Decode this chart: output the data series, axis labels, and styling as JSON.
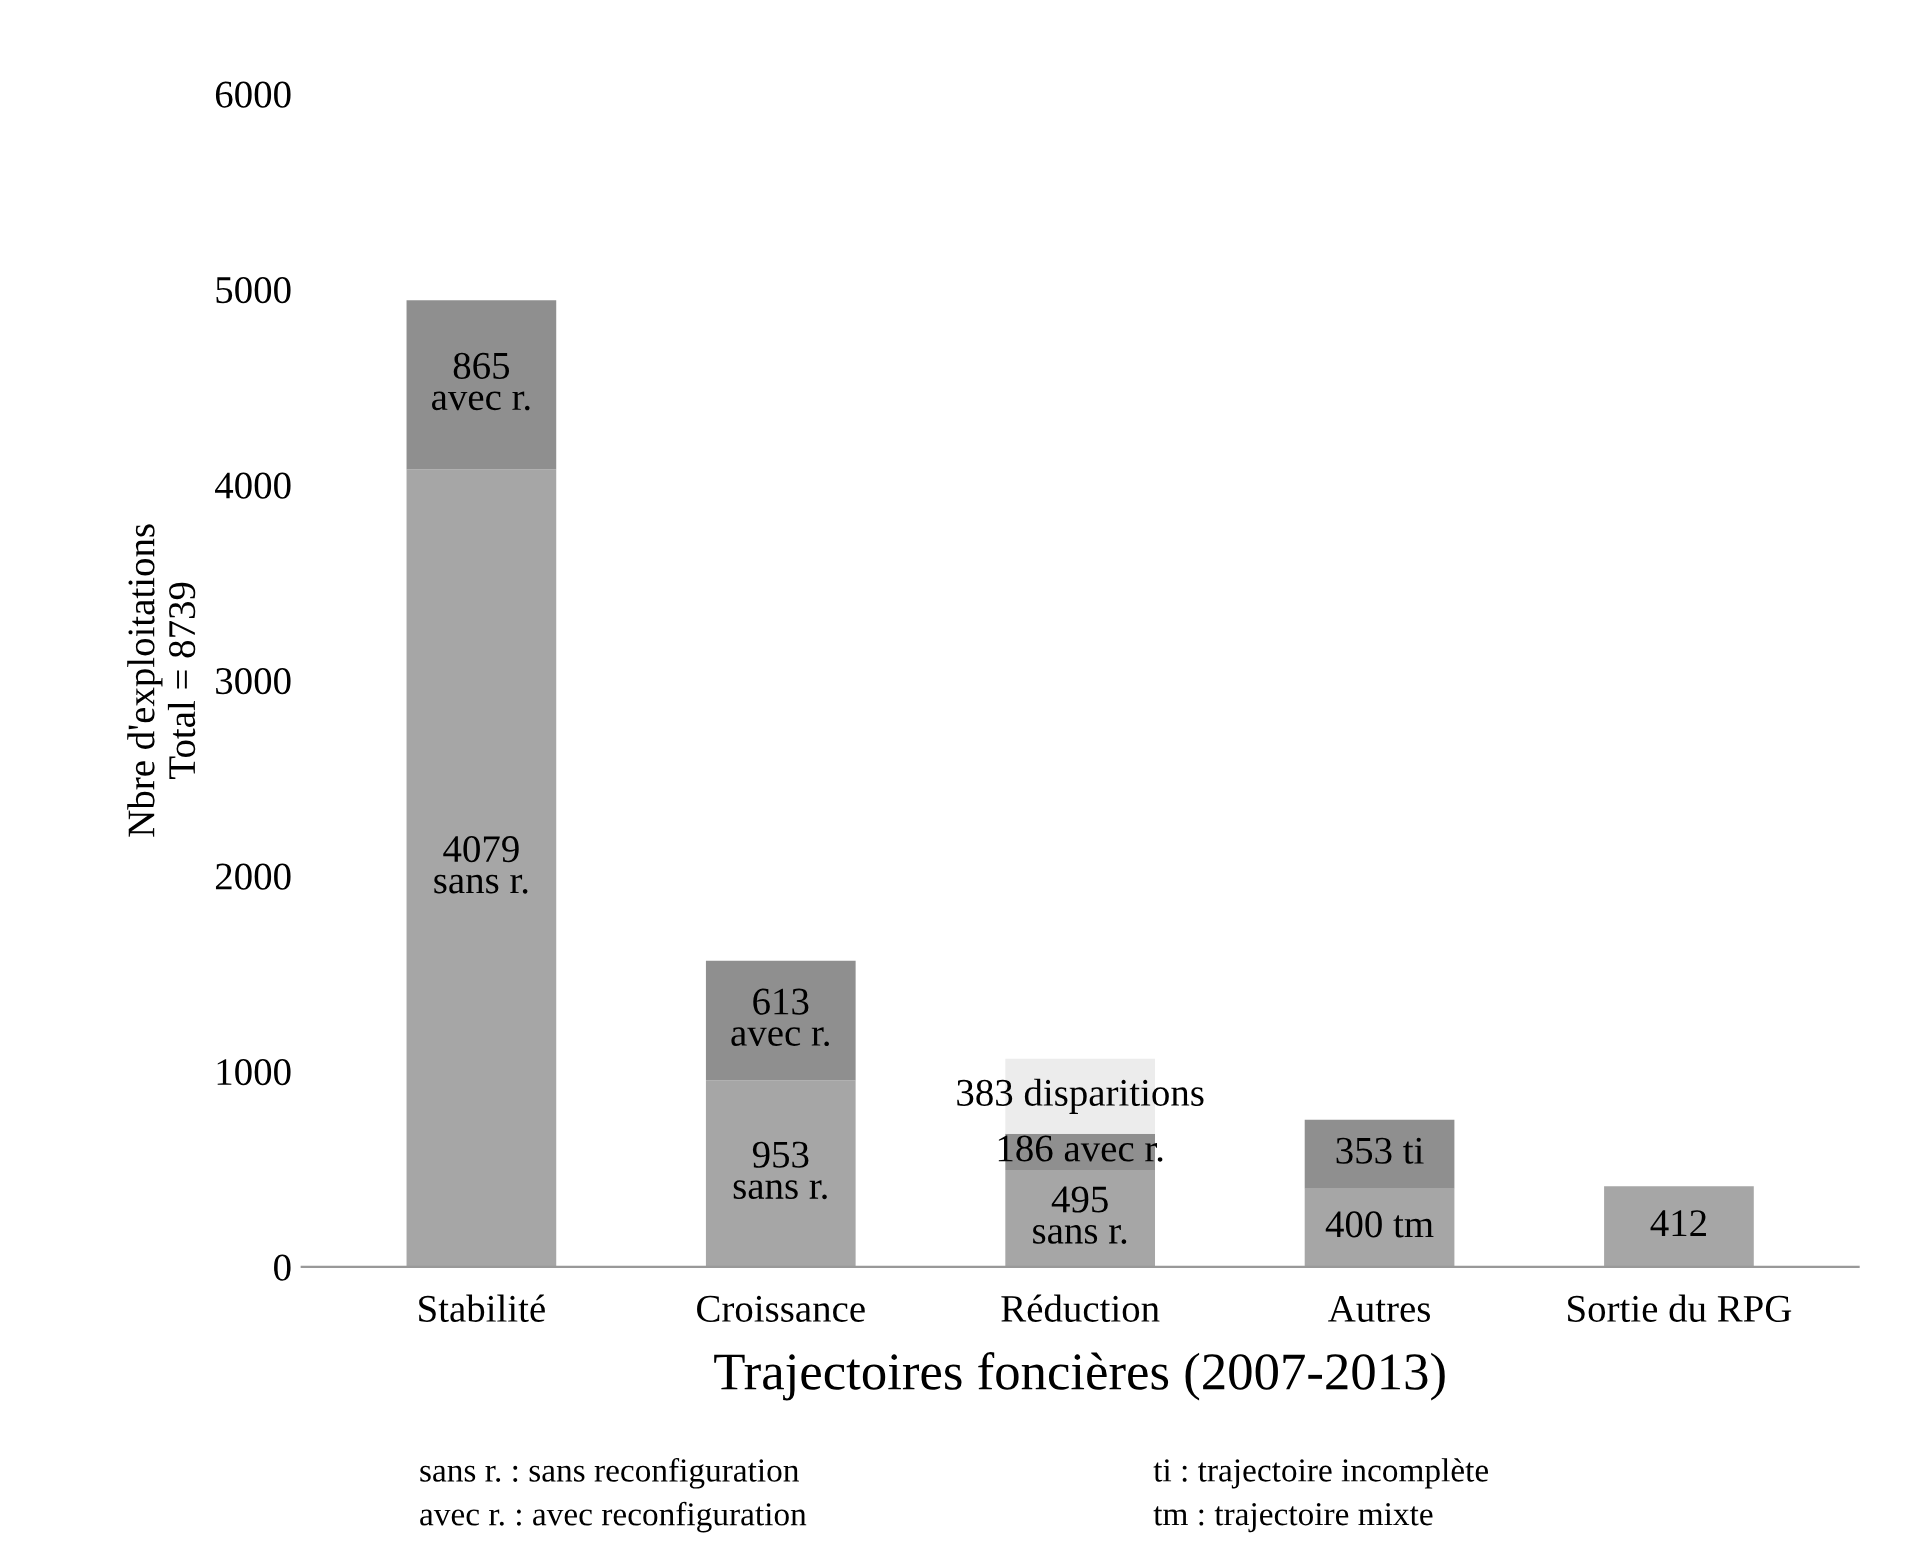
{
  "chart_data": {
    "type": "bar",
    "stacked": true,
    "xlabel": "Trajectoires foncières (2007-2013)",
    "ylabel": "Nbre d'exploitations\nTotal = 8739",
    "categories": [
      "Stabilité",
      "Croissance",
      "Réduction",
      "Autres",
      "Sortie du RPG"
    ],
    "series": [
      {
        "color": "#a6a6a6",
        "values": [
          4079,
          953,
          495,
          400,
          412
        ],
        "value_labels": [
          "4079\nsans r.",
          "953\nsans r.",
          "495\nsans r.",
          "400 tm",
          "412"
        ]
      },
      {
        "color": "#8f8f8f",
        "values": [
          865,
          613,
          186,
          353,
          null
        ],
        "value_labels": [
          "865\navec r.",
          "613\navec r.",
          "186 avec r.",
          "353 ti",
          null
        ]
      },
      {
        "color": "#ececec",
        "values": [
          null,
          null,
          383,
          null,
          null
        ],
        "value_labels": [
          null,
          null,
          "383 disparitions",
          null,
          null
        ]
      }
    ],
    "ylim": [
      0,
      6000
    ],
    "yticks": [
      0,
      1000,
      2000,
      3000,
      4000,
      5000,
      6000
    ],
    "grid": false,
    "legend": false,
    "annotations": [
      "sans r. : sans reconfiguration",
      "avec r. : avec reconfiguration",
      "ti : trajectoire incomplète",
      "tm : trajectoire mixte"
    ]
  }
}
